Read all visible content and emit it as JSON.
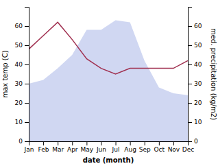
{
  "chart_data": {
    "type": "area",
    "xlabel": "date (month)",
    "ylabel": "max temp (C)",
    "y2label": "med. precipitation (kg/m2)",
    "categories": [
      "Jan",
      "Feb",
      "Mar",
      "Apr",
      "May",
      "Jun",
      "Jul",
      "Aug",
      "Sep",
      "Oct",
      "Nov",
      "Dec"
    ],
    "series": [
      {
        "type": "area",
        "color": "#c8d0f0",
        "values": [
          30,
          32,
          38,
          45,
          58,
          58,
          63,
          62,
          42,
          28,
          25,
          24
        ]
      },
      {
        "type": "line",
        "color": "#a03050",
        "axis": "y2",
        "values": [
          48,
          55,
          62,
          53,
          43,
          38,
          35,
          38,
          38,
          38,
          38,
          42
        ]
      }
    ],
    "ylim": [
      0,
      70
    ],
    "yticks": [
      0,
      10,
      20,
      30,
      40,
      50,
      60
    ],
    "y2lim": [
      0,
      70
    ],
    "y2ticks": [
      0,
      10,
      20,
      30,
      40,
      50,
      60
    ]
  }
}
